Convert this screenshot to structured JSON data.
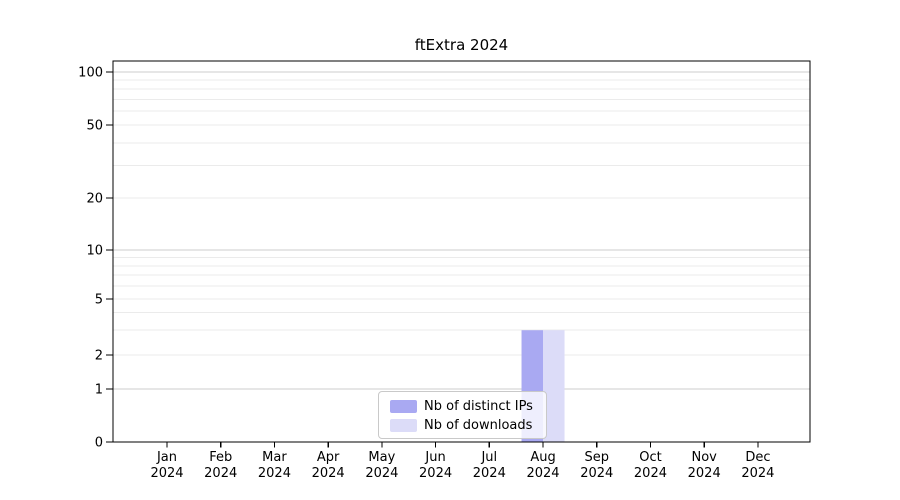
{
  "chart_data": {
    "type": "bar",
    "title": "ftExtra 2024",
    "categories": [
      {
        "month": "Jan",
        "year": "2024"
      },
      {
        "month": "Feb",
        "year": "2024"
      },
      {
        "month": "Mar",
        "year": "2024"
      },
      {
        "month": "Apr",
        "year": "2024"
      },
      {
        "month": "May",
        "year": "2024"
      },
      {
        "month": "Jun",
        "year": "2024"
      },
      {
        "month": "Jul",
        "year": "2024"
      },
      {
        "month": "Aug",
        "year": "2024"
      },
      {
        "month": "Sep",
        "year": "2024"
      },
      {
        "month": "Oct",
        "year": "2024"
      },
      {
        "month": "Nov",
        "year": "2024"
      },
      {
        "month": "Dec",
        "year": "2024"
      }
    ],
    "series": [
      {
        "name": "Nb of distinct IPs",
        "color": "#a9a9f2",
        "values": [
          0,
          0,
          0,
          0,
          0,
          0,
          0,
          3,
          0,
          0,
          0,
          0
        ]
      },
      {
        "name": "Nb of downloads",
        "color": "#dcdcf8",
        "values": [
          0,
          0,
          0,
          0,
          0,
          0,
          0,
          3,
          0,
          0,
          0,
          0
        ]
      }
    ],
    "xlabel": "",
    "ylabel": "",
    "ylim": [
      0,
      115
    ],
    "y_axis": {
      "scale": "log-above-1-with-zero-baseline",
      "tick_values": [
        0,
        1,
        2,
        5,
        10,
        20,
        50,
        100
      ],
      "tick_labels": [
        "0",
        "1",
        "2",
        "5",
        "10",
        "20",
        "50",
        "100"
      ],
      "emphasized_gridline_values": [
        1,
        10,
        100
      ],
      "minor_gridline_values": [
        3,
        4,
        6,
        7,
        8,
        9,
        30,
        40,
        60,
        70,
        80,
        90
      ]
    },
    "legend": {
      "position": "lower center"
    },
    "grid": "horizontal-on",
    "style": {
      "axis_color": "#000000",
      "text_color": "#000000",
      "grid_major_color": "#cccccc",
      "grid_minor_color": "#ebebeb",
      "background_color": "#ffffff"
    }
  }
}
